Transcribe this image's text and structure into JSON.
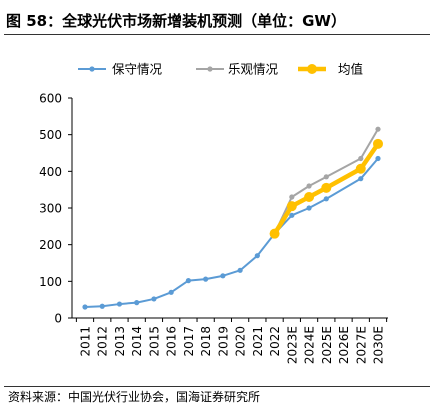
{
  "header": {
    "title": "图 58：全球光伏市场新增装机预测（单位：GW）"
  },
  "footer": {
    "source": "资料来源：中国光伏行业协会，国海证券研究所"
  },
  "colors": {
    "conservative": "#5b9bd5",
    "optimistic": "#a5a5a5",
    "average": "#ffc000",
    "axis": "#000000"
  },
  "chart_data": {
    "type": "line",
    "categories": [
      "2011",
      "2012",
      "2013",
      "2014",
      "2015",
      "2016",
      "2017",
      "2018",
      "2019",
      "2020",
      "2021",
      "2022",
      "2023E",
      "2024E",
      "2025E",
      "2026E",
      "2027E",
      "2030E"
    ],
    "series": [
      {
        "name": "保守情况",
        "values": [
          30,
          32,
          38,
          42,
          52,
          70,
          102,
          106,
          115,
          130,
          170,
          230,
          280,
          300,
          325,
          null,
          380,
          435
        ]
      },
      {
        "name": "乐观情况",
        "values": [
          null,
          null,
          null,
          null,
          null,
          null,
          null,
          null,
          null,
          null,
          null,
          230,
          330,
          360,
          385,
          null,
          435,
          515
        ]
      },
      {
        "name": "均值",
        "values": [
          null,
          null,
          null,
          null,
          null,
          null,
          null,
          null,
          null,
          null,
          null,
          230,
          305,
          330,
          355,
          null,
          407,
          475
        ]
      }
    ],
    "ylim": [
      0,
      600
    ],
    "yticks": [
      "0",
      "100",
      "200",
      "300",
      "400",
      "500",
      "600"
    ],
    "legend_position": "top",
    "grid": false
  }
}
